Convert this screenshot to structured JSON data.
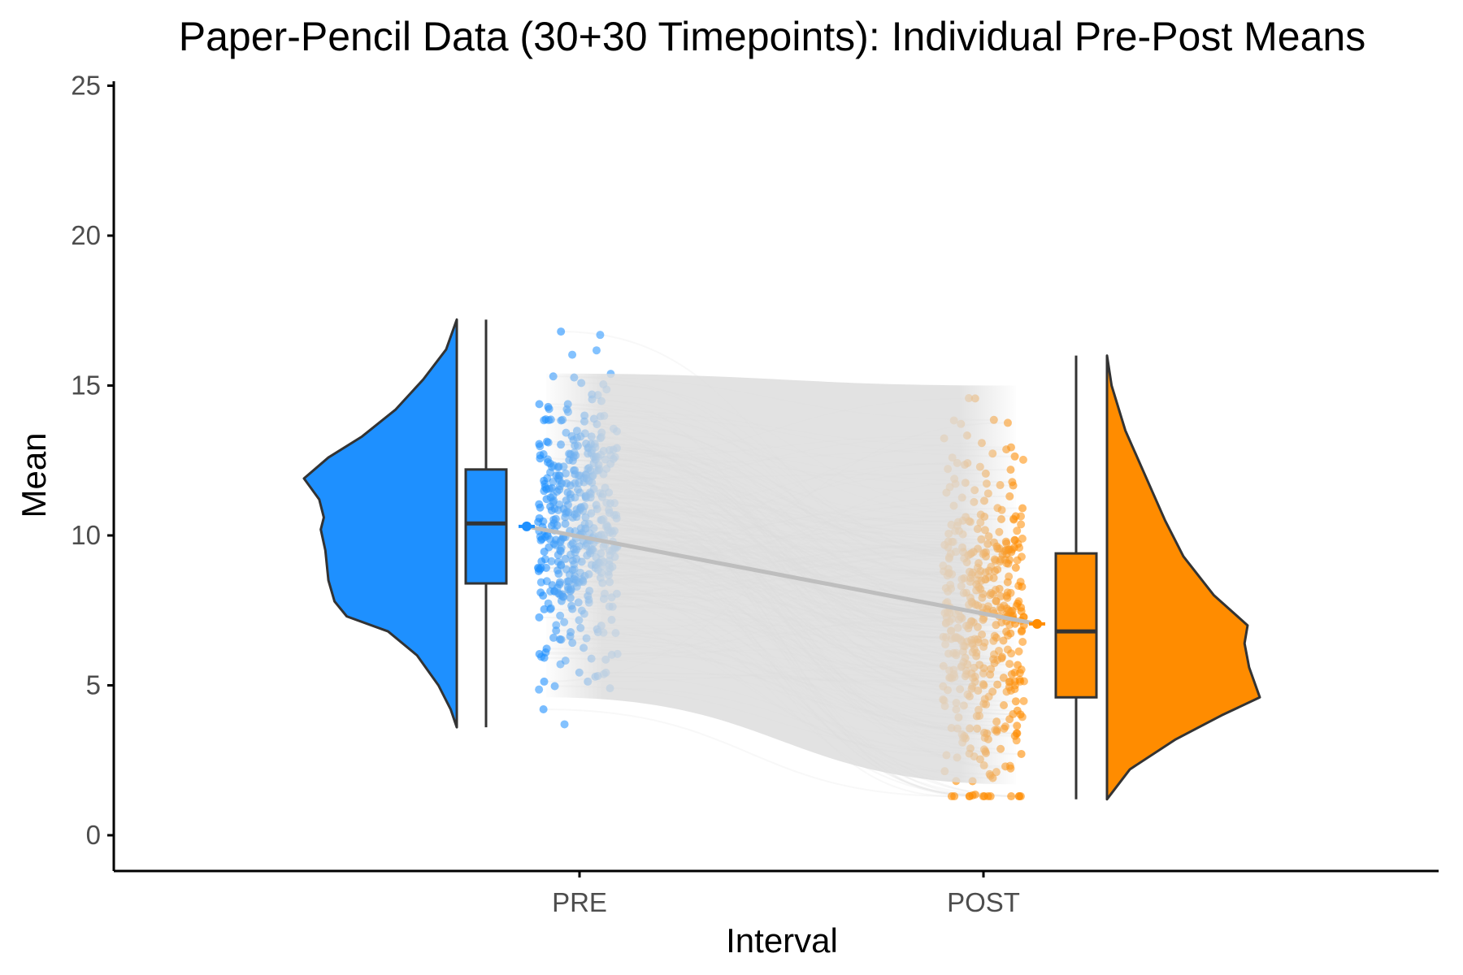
{
  "chart_data": {
    "type": "raincloud",
    "title": "Paper-Pencil Data (30+30 Timepoints): Individual Pre-Post Means",
    "xlabel": "Interval",
    "ylabel": "Mean",
    "categories": [
      "PRE",
      "POST"
    ],
    "ylim": [
      -1.2,
      25.2
    ],
    "yticks": [
      0,
      5,
      10,
      15,
      20,
      25
    ],
    "ytick_labels": [
      "0",
      "5",
      "10",
      "15",
      "20",
      "25"
    ],
    "grid": false,
    "legend": "none",
    "series": [
      {
        "name": "PRE",
        "color": "#1E90FF",
        "min": 3.6,
        "q1": 8.4,
        "median": 10.4,
        "q3": 12.2,
        "max": 17.2,
        "mean": 10.3,
        "density_shape": [
          [
            3.6,
            0
          ],
          [
            4.2,
            0.04
          ],
          [
            5.0,
            0.12
          ],
          [
            6.0,
            0.26
          ],
          [
            6.8,
            0.45
          ],
          [
            7.3,
            0.72
          ],
          [
            7.8,
            0.8
          ],
          [
            8.5,
            0.84
          ],
          [
            9.5,
            0.86
          ],
          [
            10.2,
            0.89
          ],
          [
            10.6,
            0.87
          ],
          [
            11.2,
            0.9
          ],
          [
            11.9,
            1.0
          ],
          [
            12.6,
            0.84
          ],
          [
            13.3,
            0.62
          ],
          [
            14.2,
            0.4
          ],
          [
            15.2,
            0.22
          ],
          [
            16.2,
            0.07
          ],
          [
            17.2,
            0
          ]
        ]
      },
      {
        "name": "POST",
        "color": "#FF8C00",
        "min": 1.2,
        "q1": 4.6,
        "median": 6.8,
        "q3": 9.4,
        "max": 16.0,
        "mean": 7.05,
        "density_shape": [
          [
            1.2,
            0
          ],
          [
            2.2,
            0.15
          ],
          [
            3.2,
            0.45
          ],
          [
            4.0,
            0.75
          ],
          [
            4.6,
            1.0
          ],
          [
            5.6,
            0.93
          ],
          [
            6.4,
            0.9
          ],
          [
            7.0,
            0.92
          ],
          [
            8.0,
            0.7
          ],
          [
            9.3,
            0.5
          ],
          [
            10.5,
            0.38
          ],
          [
            12.0,
            0.25
          ],
          [
            13.5,
            0.12
          ],
          [
            15.0,
            0.03
          ],
          [
            16.0,
            0
          ]
        ]
      }
    ]
  }
}
